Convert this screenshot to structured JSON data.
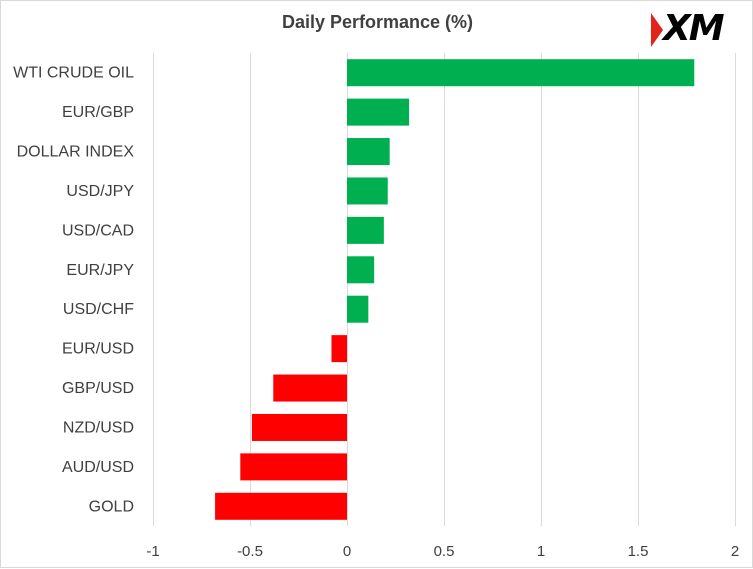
{
  "title": "Daily Performance (%)",
  "logo": {
    "text": "XM"
  },
  "chart_data": {
    "type": "bar",
    "orientation": "horizontal",
    "title": "Daily Performance (%)",
    "xlabel": "",
    "ylabel": "",
    "xlim": [
      -1,
      2
    ],
    "xticks": [
      -1,
      -0.5,
      0,
      0.5,
      1,
      1.5,
      2
    ],
    "xtick_labels": [
      "-1",
      "-0.5",
      "0",
      "0.5",
      "1",
      "1.5",
      "2"
    ],
    "grid": "vertical",
    "categories": [
      "WTI CRUDE OIL",
      "EUR/GBP",
      "DOLLAR INDEX",
      "USD/JPY",
      "USD/CAD",
      "EUR/JPY",
      "USD/CHF",
      "EUR/USD",
      "GBP/USD",
      "NZD/USD",
      "AUD/USD",
      "GOLD"
    ],
    "values": [
      1.79,
      0.32,
      0.22,
      0.21,
      0.19,
      0.14,
      0.11,
      -0.08,
      -0.38,
      -0.49,
      -0.55,
      -0.68
    ],
    "colors": {
      "positive": "#00b050",
      "negative": "#ff0000"
    }
  }
}
